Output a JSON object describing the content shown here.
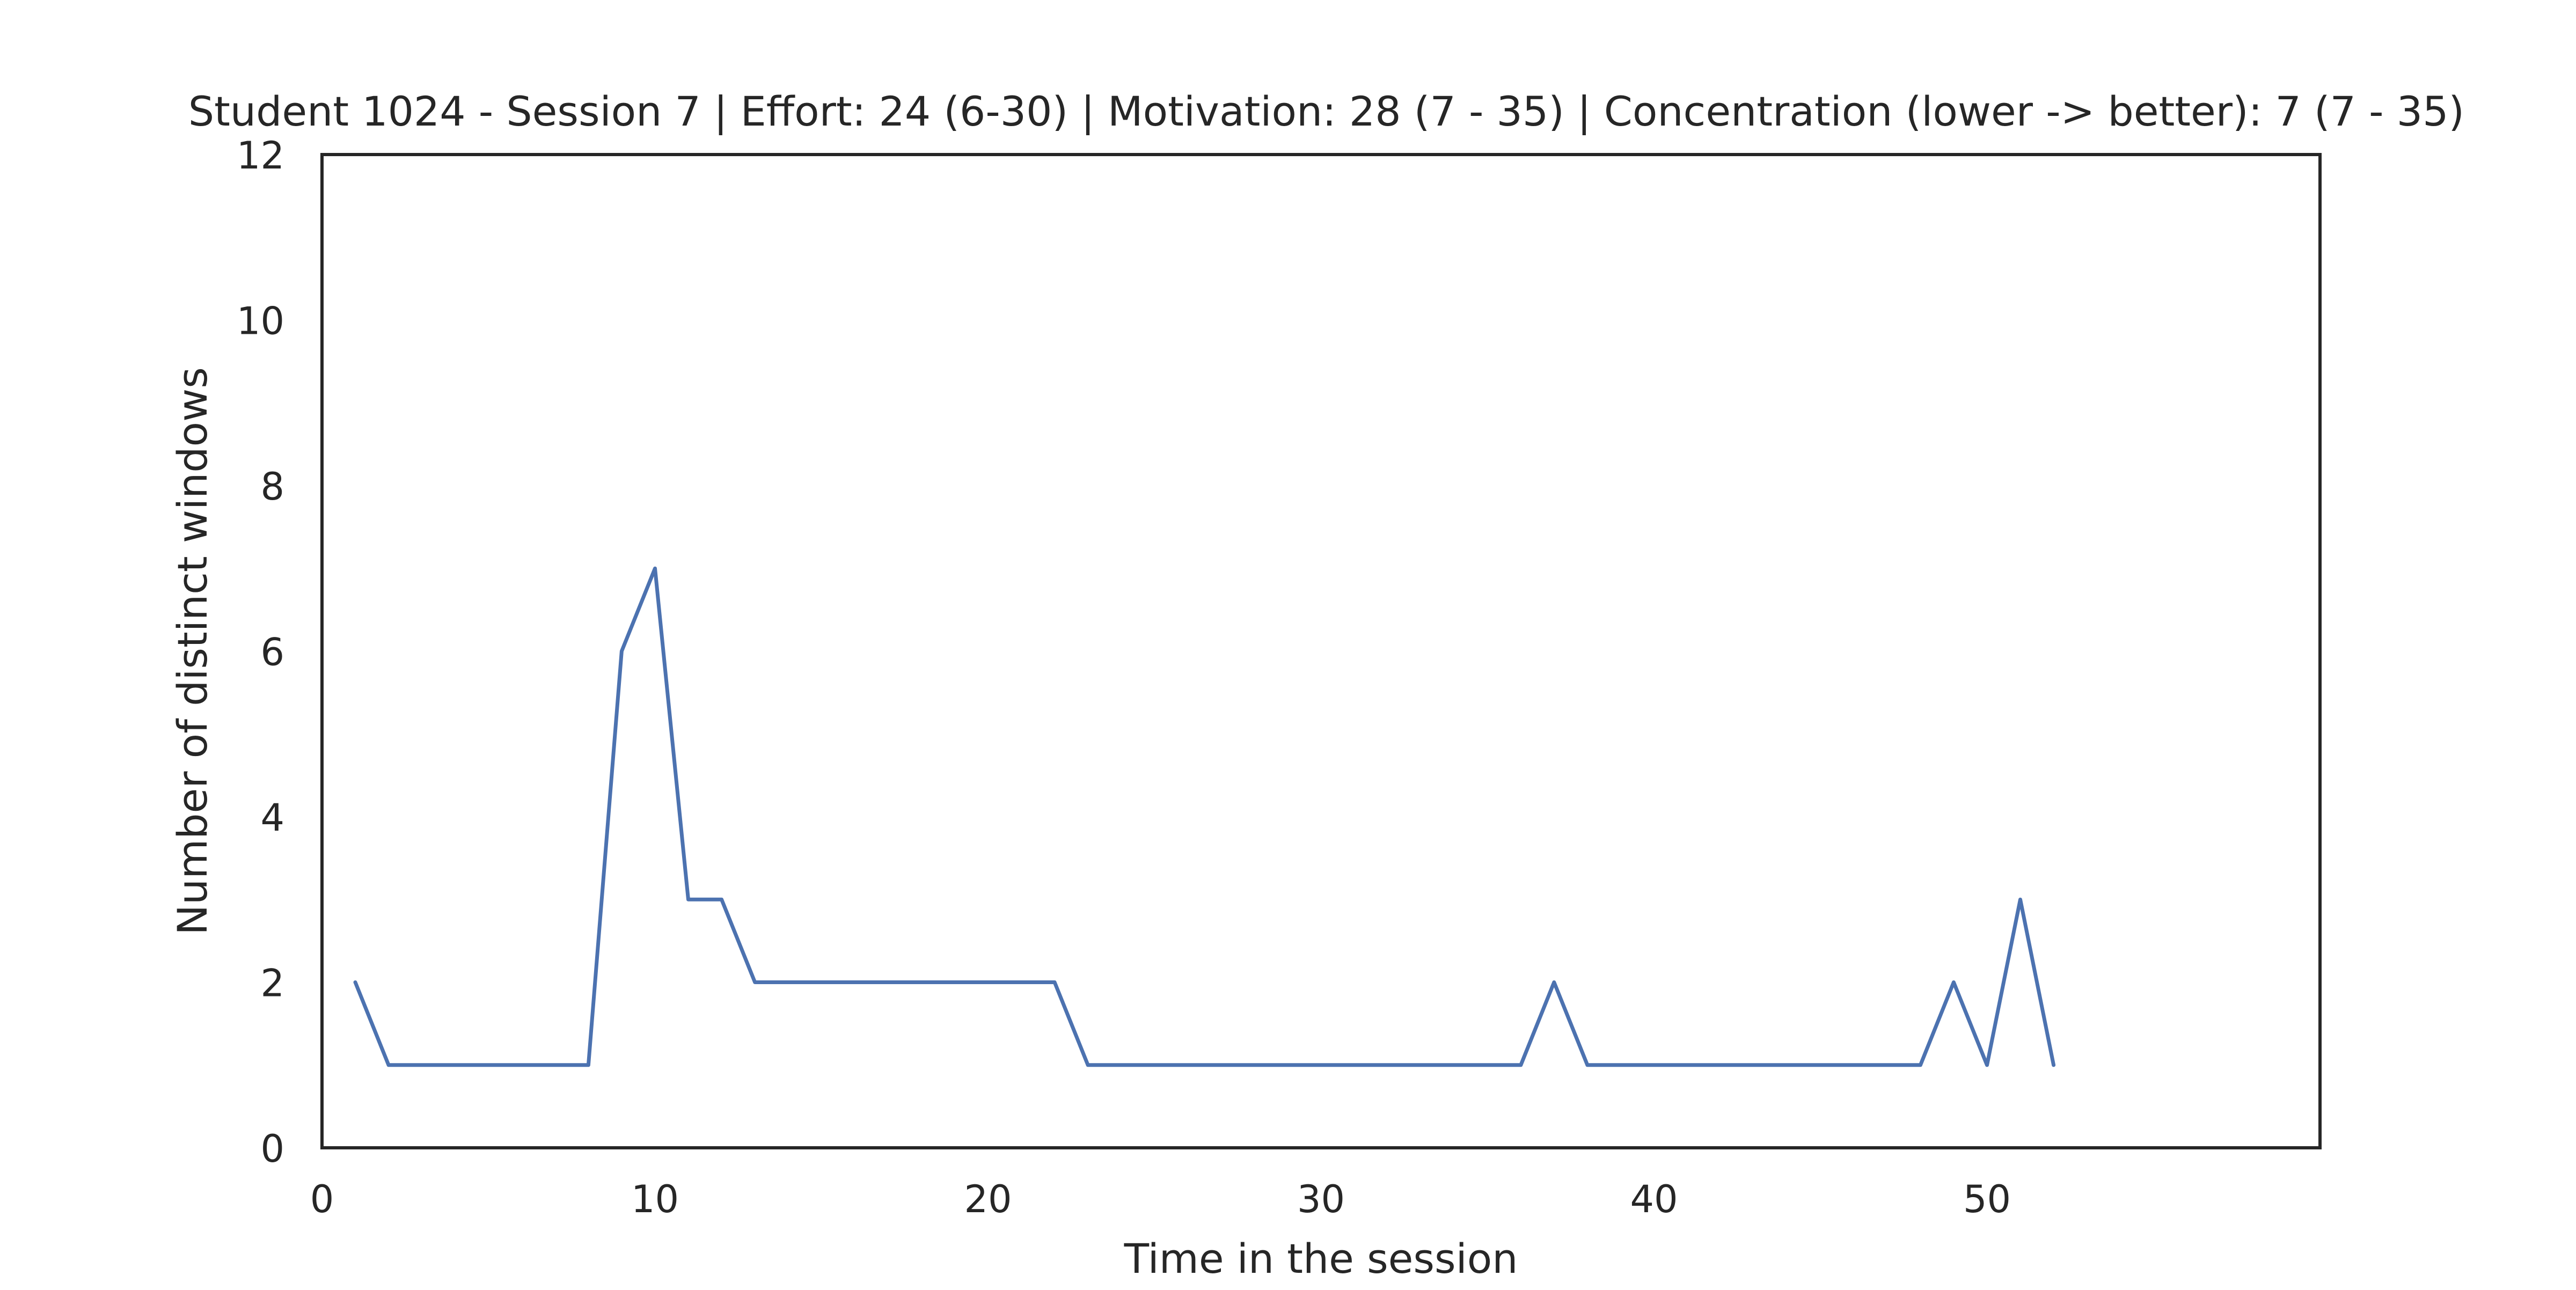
{
  "chart_data": {
    "type": "line",
    "title": "Student 1024 - Session 7 | Effort: 24 (6-30) | Motivation: 28 (7 - 35) | Concentration (lower -> better): 7 (7 - 35)",
    "xlabel": "Time in the session",
    "ylabel": "Number of distinct windows",
    "xlim": [
      0,
      60
    ],
    "ylim": [
      0,
      12
    ],
    "xticks": [
      0,
      10,
      20,
      30,
      40,
      50
    ],
    "yticks": [
      0,
      2,
      4,
      6,
      8,
      10,
      12
    ],
    "grid": false,
    "legend": "none",
    "series": [
      {
        "color": "#4c72b0",
        "x": [
          1,
          2,
          3,
          4,
          5,
          6,
          7,
          8,
          9,
          10,
          11,
          12,
          13,
          14,
          15,
          16,
          17,
          18,
          19,
          20,
          21,
          22,
          23,
          24,
          25,
          26,
          27,
          28,
          29,
          30,
          31,
          32,
          33,
          34,
          35,
          36,
          37,
          38,
          39,
          40,
          41,
          42,
          43,
          44,
          45,
          46,
          47,
          48,
          49,
          50,
          51,
          52
        ],
        "y": [
          2,
          1,
          1,
          1,
          1,
          1,
          1,
          1,
          6,
          7,
          3,
          3,
          2,
          2,
          2,
          2,
          2,
          2,
          2,
          2,
          2,
          2,
          1,
          1,
          1,
          1,
          1,
          1,
          1,
          1,
          1,
          1,
          1,
          1,
          1,
          1,
          2,
          1,
          1,
          1,
          1,
          1,
          1,
          1,
          1,
          1,
          1,
          1,
          2,
          1,
          3,
          1
        ]
      }
    ]
  }
}
